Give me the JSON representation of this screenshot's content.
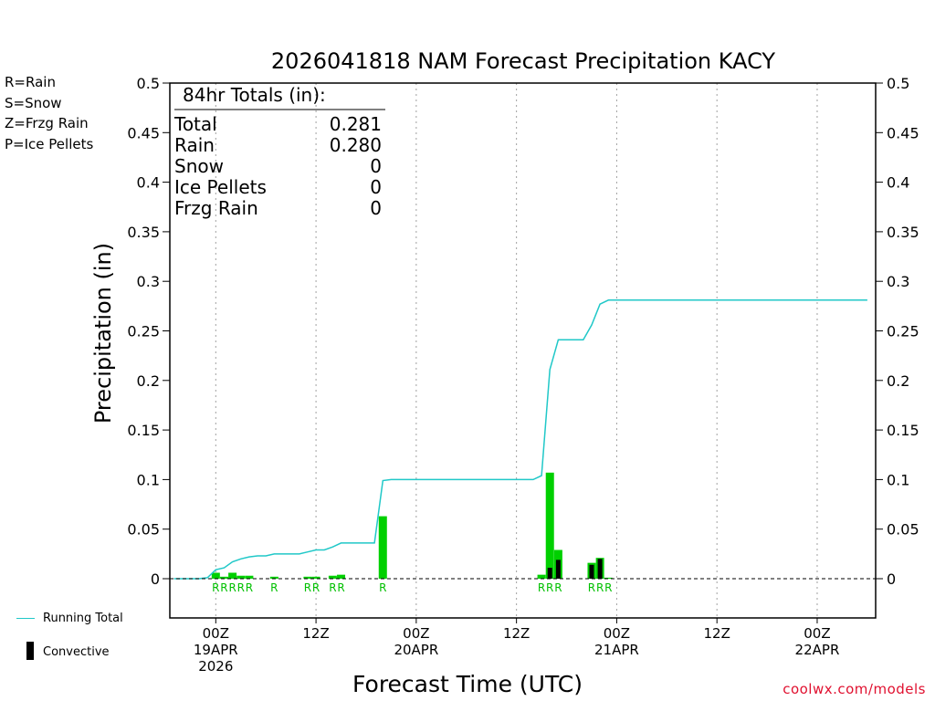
{
  "precip_types": [
    {
      "label": "R=Rain",
      "color": "#00d000"
    },
    {
      "label": "S=Snow",
      "color": "#3050ff"
    },
    {
      "label": "Z=Frzg Rain",
      "color": "#ff8c30"
    },
    {
      "label": "P=Ice Pellets",
      "color": "#e0108a"
    }
  ],
  "legend": {
    "running_total_label": "Running Total",
    "running_total_color": "#20c8c8",
    "convective_label": "Convective",
    "convective_color": "#000000"
  },
  "totals_box": {
    "header": "84hr Totals (in):",
    "rows": [
      {
        "label": "Total",
        "value": "0.281"
      },
      {
        "label": "Rain",
        "value": "0.280"
      },
      {
        "label": "Snow",
        "value": "0"
      },
      {
        "label": "Ice Pellets",
        "value": "0"
      },
      {
        "label": "Frzg Rain",
        "value": "0"
      }
    ]
  },
  "credit": "coolwx.com/models",
  "chart_data": {
    "type": "bar",
    "title": "2026041818 NAM Forecast Precipitation KACY",
    "xlabel": "Forecast Time (UTC)",
    "ylabel": "Precipitation (in)",
    "ylim": [
      -0.04,
      0.5
    ],
    "yticks": [
      "0",
      "0.05",
      "0.1",
      "0.15",
      "0.2",
      "0.25",
      "0.3",
      "0.35",
      "0.4",
      "0.45",
      "0.5"
    ],
    "x_unit": "forecast hour",
    "xlim": [
      0,
      84
    ],
    "xticks": [
      {
        "hour": 6,
        "lines": [
          "00Z",
          "19APR",
          "2026"
        ]
      },
      {
        "hour": 18,
        "lines": [
          "12Z"
        ]
      },
      {
        "hour": 30,
        "lines": [
          "00Z",
          "20APR"
        ]
      },
      {
        "hour": 42,
        "lines": [
          "12Z"
        ]
      },
      {
        "hour": 54,
        "lines": [
          "00Z",
          "21APR"
        ]
      },
      {
        "hour": 66,
        "lines": [
          "12Z"
        ]
      },
      {
        "hour": 78,
        "lines": [
          "00Z",
          "22APR"
        ]
      }
    ],
    "grid": "vertical dotted at 00Z/12Z",
    "bar_colors": {
      "rain": "#00d000",
      "convective": "#000000"
    },
    "series": [
      {
        "name": "Rain",
        "hours": [
          6,
          7,
          8,
          9,
          10,
          13,
          17,
          18,
          20,
          21,
          26,
          45,
          46,
          47,
          51,
          52,
          53
        ],
        "values": [
          0.006,
          0.002,
          0.006,
          0.003,
          0.003,
          0.002,
          0.002,
          0.002,
          0.003,
          0.004,
          0.063,
          0.004,
          0.107,
          0.029,
          0.016,
          0.021,
          0.001
        ]
      },
      {
        "name": "Convective",
        "hours": [
          46,
          47,
          51,
          52
        ],
        "values": [
          0.011,
          0.019,
          0.014,
          0.02
        ]
      },
      {
        "name": "Running Total",
        "hours": [
          1,
          2,
          3,
          4,
          5,
          6,
          7,
          8,
          9,
          10,
          11,
          12,
          13,
          14,
          15,
          16,
          17,
          18,
          19,
          20,
          21,
          22,
          23,
          24,
          25,
          26,
          27,
          44,
          45,
          46,
          47,
          48,
          49,
          50,
          51,
          52,
          53,
          54,
          84
        ],
        "values": [
          0,
          0,
          0,
          0,
          0.001,
          0.009,
          0.011,
          0.017,
          0.02,
          0.022,
          0.023,
          0.023,
          0.025,
          0.025,
          0.025,
          0.025,
          0.027,
          0.029,
          0.029,
          0.032,
          0.036,
          0.036,
          0.036,
          0.036,
          0.036,
          0.099,
          0.1,
          0.1,
          0.104,
          0.211,
          0.241,
          0.241,
          0.241,
          0.241,
          0.256,
          0.277,
          0.281,
          0.281,
          0.281
        ]
      }
    ],
    "type_markers": [
      {
        "hour": 6,
        "text": "R"
      },
      {
        "hour": 7,
        "text": "R"
      },
      {
        "hour": 8,
        "text": "R"
      },
      {
        "hour": 9,
        "text": "R"
      },
      {
        "hour": 10,
        "text": "R"
      },
      {
        "hour": 13,
        "text": "R"
      },
      {
        "hour": 17,
        "text": "R"
      },
      {
        "hour": 18,
        "text": "R"
      },
      {
        "hour": 20,
        "text": "R"
      },
      {
        "hour": 21,
        "text": "R"
      },
      {
        "hour": 26,
        "text": "R"
      },
      {
        "hour": 45,
        "text": "R"
      },
      {
        "hour": 46,
        "text": "R"
      },
      {
        "hour": 47,
        "text": "R"
      },
      {
        "hour": 51,
        "text": "R"
      },
      {
        "hour": 52,
        "text": "R"
      },
      {
        "hour": 53,
        "text": "R"
      }
    ]
  }
}
